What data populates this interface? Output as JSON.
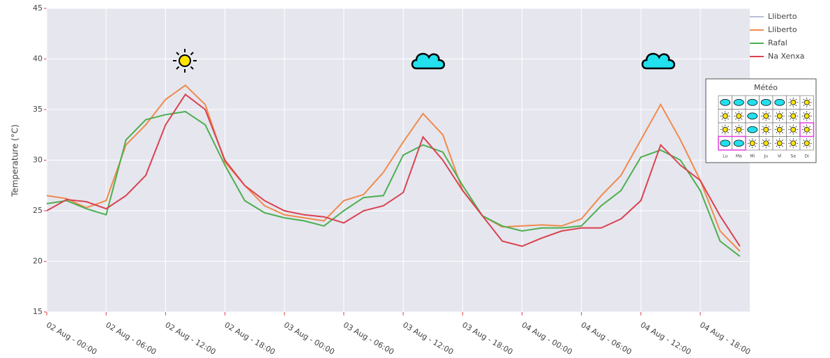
{
  "chart_data": {
    "type": "line",
    "y_label": "Temperature (°C)",
    "x": [
      "02 Aug - 00:00",
      "02 Aug - 02:00",
      "02 Aug - 04:00",
      "02 Aug - 06:00",
      "02 Aug - 08:00",
      "02 Aug - 10:00",
      "02 Aug - 12:00",
      "02 Aug - 14:00",
      "02 Aug - 16:00",
      "02 Aug - 18:00",
      "02 Aug - 20:00",
      "02 Aug - 22:00",
      "03 Aug - 00:00",
      "03 Aug - 02:00",
      "03 Aug - 04:00",
      "03 Aug - 06:00",
      "03 Aug - 08:00",
      "03 Aug - 10:00",
      "03 Aug - 12:00",
      "03 Aug - 14:00",
      "03 Aug - 16:00",
      "03 Aug - 18:00",
      "03 Aug - 20:00",
      "03 Aug - 22:00",
      "04 Aug - 00:00",
      "04 Aug - 02:00",
      "04 Aug - 04:00",
      "04 Aug - 06:00",
      "04 Aug - 08:00",
      "04 Aug - 10:00",
      "04 Aug - 12:00",
      "04 Aug - 14:00",
      "04 Aug - 16:00",
      "04 Aug - 18:00",
      "04 Aug - 20:00",
      "04 Aug - 22:00"
    ],
    "xlim": [
      "02 Aug - 00:00",
      "04 Aug - 23:00"
    ],
    "xticks": [
      "02 Aug - 00:00",
      "02 Aug - 06:00",
      "02 Aug - 12:00",
      "02 Aug - 18:00",
      "03 Aug - 00:00",
      "03 Aug - 06:00",
      "03 Aug - 12:00",
      "03 Aug - 18:00",
      "04 Aug - 00:00",
      "04 Aug - 06:00",
      "04 Aug - 12:00",
      "04 Aug - 18:00"
    ],
    "ylim": [
      15,
      45
    ],
    "yticks": [
      15,
      20,
      25,
      30,
      35,
      40,
      45
    ],
    "grid": true,
    "legend": "top-right",
    "series": [
      {
        "name": "Lliberto",
        "color": "#b8bfd8",
        "values": [
          null,
          null,
          null,
          null,
          null,
          null,
          null,
          null,
          null,
          null,
          null,
          null,
          null,
          null,
          null,
          null,
          null,
          null,
          null,
          null,
          null,
          null,
          null,
          null,
          null,
          null,
          null,
          null,
          null,
          null,
          null,
          null,
          null,
          null,
          null,
          null
        ]
      },
      {
        "name": "Lliberto",
        "color": "#f08a4b",
        "values": [
          26.5,
          26.2,
          25.3,
          26.0,
          31.5,
          33.5,
          36.0,
          37.4,
          35.5,
          29.8,
          27.5,
          25.5,
          24.6,
          24.3,
          24.0,
          26.0,
          26.6,
          28.8,
          31.8,
          34.6,
          32.5,
          27.0,
          24.5,
          23.4,
          23.5,
          23.6,
          23.5,
          24.2,
          26.5,
          28.5,
          32.0,
          35.5,
          32.0,
          28.0,
          23.0,
          21.0
        ]
      },
      {
        "name": "Rafal",
        "color": "#4caf50",
        "values": [
          25.7,
          26.0,
          25.2,
          24.6,
          32.0,
          34.0,
          34.5,
          34.8,
          33.5,
          29.5,
          26.0,
          24.8,
          24.3,
          24.0,
          23.5,
          25.0,
          26.3,
          26.5,
          30.5,
          31.5,
          30.8,
          27.5,
          24.5,
          23.5,
          23.0,
          23.3,
          23.3,
          23.5,
          25.5,
          27.0,
          30.3,
          31.0,
          30.0,
          27.0,
          22.0,
          20.5
        ]
      },
      {
        "name": "Na Xenxa",
        "color": "#d9434f",
        "values": [
          25.0,
          26.1,
          25.9,
          25.2,
          26.5,
          28.5,
          33.5,
          36.5,
          35.0,
          30.0,
          27.5,
          26.0,
          25.0,
          24.6,
          24.4,
          23.8,
          25.0,
          25.5,
          26.8,
          32.3,
          30.0,
          27.0,
          24.5,
          22.0,
          21.5,
          22.3,
          23.0,
          23.3,
          23.3,
          24.2,
          26.0,
          31.5,
          29.5,
          28.0,
          24.5,
          21.5
        ]
      }
    ]
  },
  "meteo": {
    "title": "Météo",
    "days": [
      "Lu",
      "Ma",
      "Mi",
      "Ju",
      "Vi",
      "Sa",
      "Di"
    ]
  }
}
